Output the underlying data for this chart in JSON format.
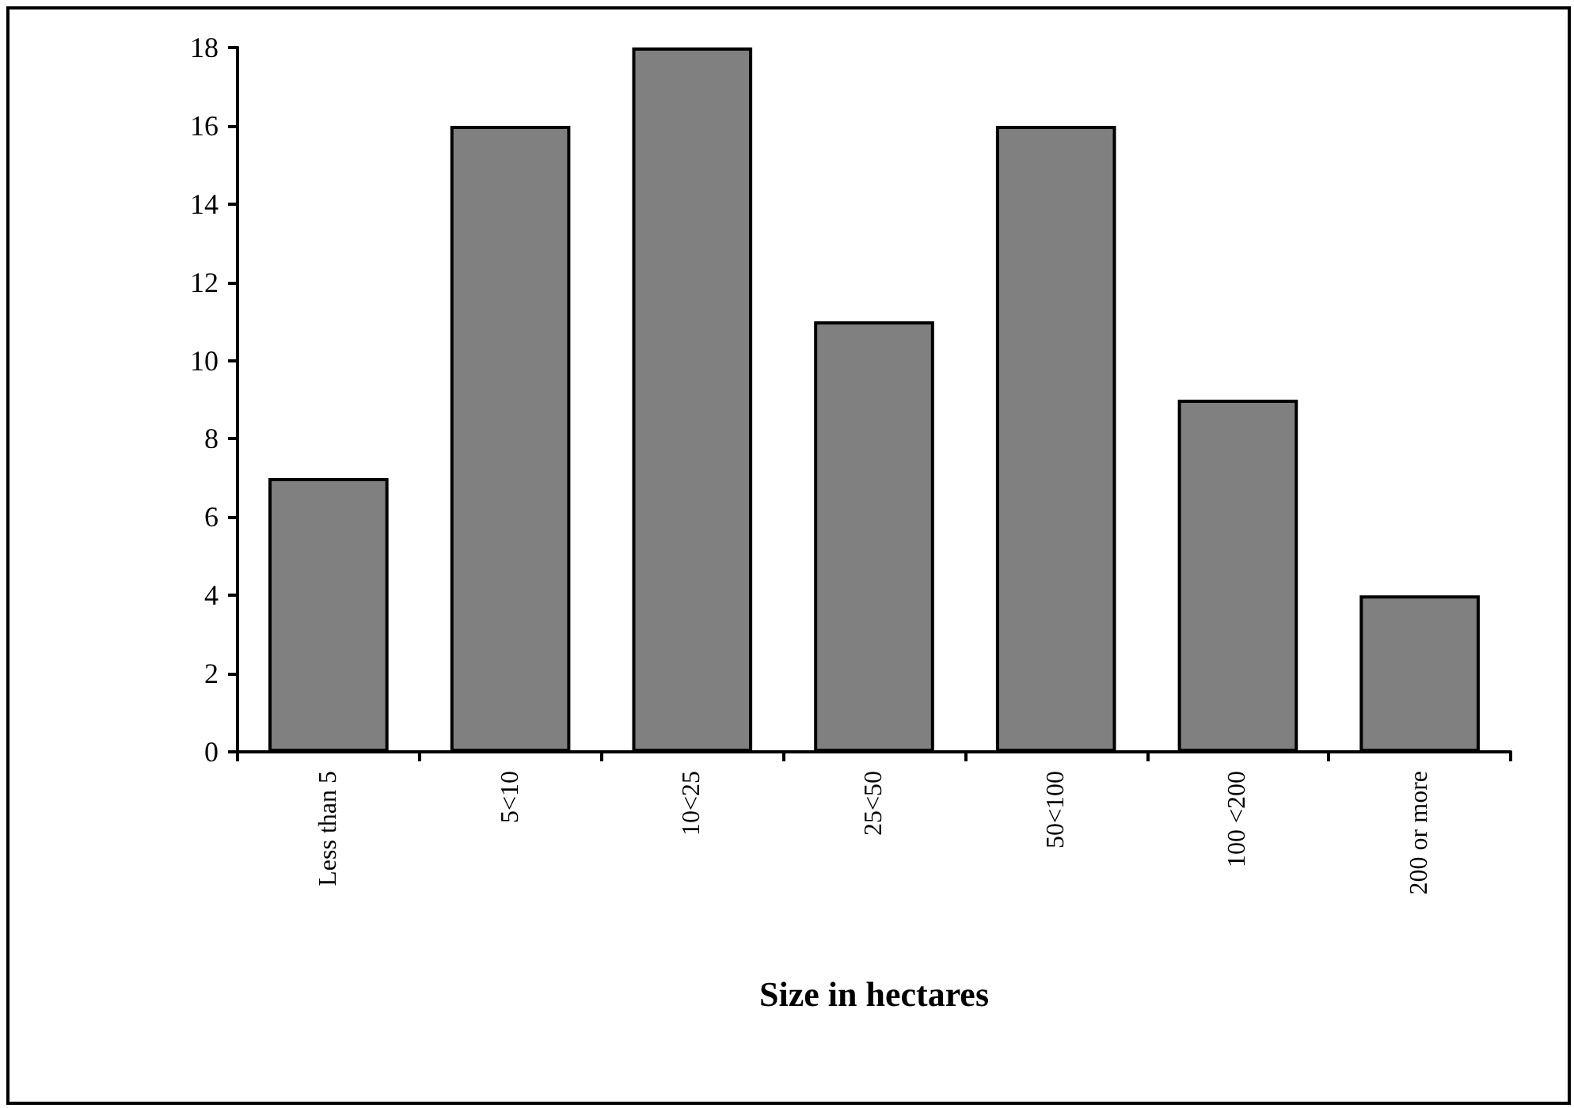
{
  "chart_data": {
    "type": "bar",
    "xlabel": "Size in hectares",
    "categories": [
      "Less than 5",
      "5<10",
      "10<25",
      "25<50",
      "50<100",
      "100 <200",
      "200 or more"
    ],
    "values": [
      7,
      16,
      18,
      11,
      16,
      9,
      4
    ],
    "color": "#808080",
    "ylim": [
      0,
      18
    ],
    "yticks": [
      0,
      2,
      4,
      6,
      8,
      10,
      12,
      14,
      16,
      18
    ],
    "grid": false
  }
}
